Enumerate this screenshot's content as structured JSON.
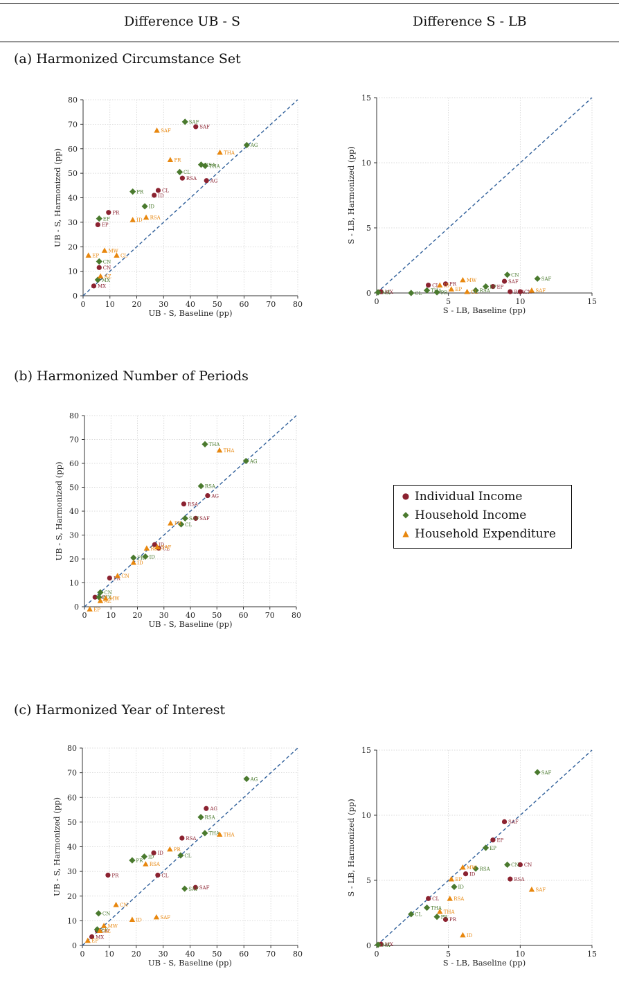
{
  "header": {
    "col1": "Difference UB - S",
    "col2": "Difference S - LB"
  },
  "sections": {
    "a": "(a) Harmonized Circumstance Set",
    "b": "(b) Harmonized Number of Periods",
    "c": "(c) Harmonized Year of Interest"
  },
  "legend": {
    "individual": "Individual Income",
    "household_income": "Household Income",
    "household_expenditure": "Household Expenditure"
  },
  "colors": {
    "individual": "#8b2230",
    "household_income": "#4a7a2e",
    "household_expenditure": "#e8870e",
    "diagonal": "#2f5f9a"
  },
  "chart_data": [
    {
      "id": "a1",
      "type": "scatter",
      "xlabel": "UB - S, Baseline (pp)",
      "ylabel": "UB - S, Harmonized (pp)",
      "xlim": [
        0,
        80
      ],
      "ylim": [
        0,
        80
      ],
      "xticks": [
        "0",
        "10",
        "20",
        "30",
        "40",
        "50",
        "60",
        "70",
        "80"
      ],
      "yticks": [
        "0",
        "10",
        "20",
        "30",
        "40",
        "50",
        "60",
        "70",
        "80"
      ],
      "grid": true,
      "diagonal": true,
      "series": [
        {
          "name": "Individual Income",
          "points": [
            {
              "x": 9.5,
              "y": 34,
              "label": "PR"
            },
            {
              "x": 5.5,
              "y": 29,
              "label": "EP"
            },
            {
              "x": 6,
              "y": 11.5,
              "label": "CN"
            },
            {
              "x": 4,
              "y": 4,
              "label": "MX"
            },
            {
              "x": 28,
              "y": 43,
              "label": "CL"
            },
            {
              "x": 26.5,
              "y": 41,
              "label": "ID"
            },
            {
              "x": 37,
              "y": 48,
              "label": "RSA"
            },
            {
              "x": 46,
              "y": 47,
              "label": "AG"
            },
            {
              "x": 42,
              "y": 69,
              "label": "SAF"
            }
          ]
        },
        {
          "name": "Household Income",
          "points": [
            {
              "x": 6,
              "y": 31.5,
              "label": "EP"
            },
            {
              "x": 18.5,
              "y": 42.5,
              "label": "PR"
            },
            {
              "x": 23,
              "y": 36.5,
              "label": "ID"
            },
            {
              "x": 36,
              "y": 50.5,
              "label": "CL"
            },
            {
              "x": 44,
              "y": 53.5,
              "label": "RSA"
            },
            {
              "x": 45.5,
              "y": 53,
              "label": "THA"
            },
            {
              "x": 61,
              "y": 61.5,
              "label": "AG"
            },
            {
              "x": 38,
              "y": 71,
              "label": "SAF"
            },
            {
              "x": 6,
              "y": 14,
              "label": "CN"
            },
            {
              "x": 5.5,
              "y": 6.5,
              "label": "MX"
            }
          ]
        },
        {
          "name": "Household Expenditure",
          "points": [
            {
              "x": 27.5,
              "y": 67.5,
              "label": "SAF"
            },
            {
              "x": 32.5,
              "y": 55.5,
              "label": "PR"
            },
            {
              "x": 51,
              "y": 58.5,
              "label": "THA"
            },
            {
              "x": 23.5,
              "y": 32,
              "label": "RSA"
            },
            {
              "x": 18.5,
              "y": 31,
              "label": "ID"
            },
            {
              "x": 2,
              "y": 16.5,
              "label": "EP"
            },
            {
              "x": 8,
              "y": 18.5,
              "label": "MW"
            },
            {
              "x": 12.5,
              "y": 16.5,
              "label": "CL"
            },
            {
              "x": 6.5,
              "y": 8,
              "label": "AZ"
            }
          ]
        }
      ]
    },
    {
      "id": "a2",
      "type": "scatter",
      "xlabel": "S - LB, Baseline (pp)",
      "ylabel": "S - LB, Harmonized (pp)",
      "xlim": [
        0,
        15
      ],
      "ylim": [
        0,
        15
      ],
      "xticks": [
        "0",
        "5",
        "10",
        "15"
      ],
      "yticks": [
        "0",
        "5",
        "10",
        "15"
      ],
      "grid": true,
      "diagonal": true,
      "series": [
        {
          "name": "Individual Income",
          "points": [
            {
              "x": 0.3,
              "y": 0.1,
              "label": "MX"
            },
            {
              "x": 3.6,
              "y": 0.6,
              "label": "CL"
            },
            {
              "x": 4.8,
              "y": 0.7,
              "label": "PR"
            },
            {
              "x": 8.1,
              "y": 0.5,
              "label": "EP"
            },
            {
              "x": 8.9,
              "y": 0.9,
              "label": "SAF"
            },
            {
              "x": 9.3,
              "y": 0.1,
              "label": "RSA"
            },
            {
              "x": 10,
              "y": 0.1,
              "label": "CN"
            }
          ]
        },
        {
          "name": "Household Income",
          "points": [
            {
              "x": 0.1,
              "y": 0.05,
              "label": "MX"
            },
            {
              "x": 2.4,
              "y": 0.0,
              "label": "CL"
            },
            {
              "x": 3.5,
              "y": 0.2,
              "label": "THA"
            },
            {
              "x": 4.2,
              "y": 0.05,
              "label": "PR"
            },
            {
              "x": 6.9,
              "y": 0.2,
              "label": "RSA"
            },
            {
              "x": 7.6,
              "y": 0.5,
              "label": "EP"
            },
            {
              "x": 9.1,
              "y": 1.4,
              "label": "CN"
            },
            {
              "x": 11.2,
              "y": 1.1,
              "label": "SAF"
            }
          ]
        },
        {
          "name": "Household Expenditure",
          "points": [
            {
              "x": 4.4,
              "y": 0.6,
              "label": "ID"
            },
            {
              "x": 5.2,
              "y": 0.3,
              "label": "EP"
            },
            {
              "x": 6.0,
              "y": 1.0,
              "label": "MW"
            },
            {
              "x": 6.3,
              "y": 0.1,
              "label": "CL"
            },
            {
              "x": 10.8,
              "y": 0.2,
              "label": "SAF"
            }
          ]
        }
      ]
    },
    {
      "id": "b1",
      "type": "scatter",
      "xlabel": "UB - S, Baseline (pp)",
      "ylabel": "UB - S, Harmonized (pp)",
      "xlim": [
        0,
        80
      ],
      "ylim": [
        0,
        80
      ],
      "xticks": [
        "0",
        "10",
        "20",
        "30",
        "40",
        "50",
        "60",
        "70",
        "80"
      ],
      "yticks": [
        "0",
        "10",
        "20",
        "30",
        "40",
        "50",
        "60",
        "70",
        "80"
      ],
      "grid": true,
      "diagonal": true,
      "series": [
        {
          "name": "Individual Income",
          "points": [
            {
              "x": 46.5,
              "y": 46.5,
              "label": "AG"
            },
            {
              "x": 37.5,
              "y": 43,
              "label": "RSA"
            },
            {
              "x": 26.5,
              "y": 26,
              "label": "ID"
            },
            {
              "x": 9.5,
              "y": 12,
              "label": "PR"
            },
            {
              "x": 4,
              "y": 4,
              "label": "MX"
            },
            {
              "x": 42,
              "y": 37,
              "label": "SAF"
            },
            {
              "x": 28,
              "y": 24.5,
              "label": "CL"
            }
          ]
        },
        {
          "name": "Household Income",
          "points": [
            {
              "x": 45.5,
              "y": 68,
              "label": "THA"
            },
            {
              "x": 61,
              "y": 61,
              "label": "AG"
            },
            {
              "x": 44,
              "y": 50.5,
              "label": "RSA"
            },
            {
              "x": 38,
              "y": 37,
              "label": "SAF"
            },
            {
              "x": 36.5,
              "y": 34.5,
              "label": "CL"
            },
            {
              "x": 23,
              "y": 21,
              "label": "ID"
            },
            {
              "x": 18.5,
              "y": 20.5,
              "label": "PR"
            },
            {
              "x": 6,
              "y": 6,
              "label": "CN"
            },
            {
              "x": 5.5,
              "y": 4,
              "label": "MX"
            }
          ]
        },
        {
          "name": "Household Expenditure",
          "points": [
            {
              "x": 51,
              "y": 65.5,
              "label": "THA"
            },
            {
              "x": 32.5,
              "y": 35,
              "label": "PR"
            },
            {
              "x": 23.5,
              "y": 24.5,
              "label": "RSA"
            },
            {
              "x": 27.5,
              "y": 25,
              "label": "SAF"
            },
            {
              "x": 18.5,
              "y": 18.5,
              "label": "ID"
            },
            {
              "x": 12.5,
              "y": 13,
              "label": "CN"
            },
            {
              "x": 8,
              "y": 3.5,
              "label": "MW"
            },
            {
              "x": 6,
              "y": 2.5,
              "label": "AZ"
            },
            {
              "x": 2,
              "y": -1,
              "label": "EP"
            }
          ]
        }
      ]
    },
    {
      "id": "c1",
      "type": "scatter",
      "xlabel": "UB - S, Baseline (pp)",
      "ylabel": "UB - S, Harmonized (pp)",
      "xlim": [
        0,
        80
      ],
      "ylim": [
        0,
        80
      ],
      "xticks": [
        "0",
        "10",
        "20",
        "30",
        "40",
        "50",
        "60",
        "70",
        "80"
      ],
      "yticks": [
        "0",
        "10",
        "20",
        "30",
        "40",
        "50",
        "60",
        "70",
        "80"
      ],
      "grid": true,
      "diagonal": true,
      "series": [
        {
          "name": "Individual Income",
          "points": [
            {
              "x": 46,
              "y": 55.5,
              "label": "AG"
            },
            {
              "x": 37,
              "y": 43.5,
              "label": "RSA"
            },
            {
              "x": 26.5,
              "y": 37.5,
              "label": "ID"
            },
            {
              "x": 28,
              "y": 28.5,
              "label": "CL"
            },
            {
              "x": 9.5,
              "y": 28.5,
              "label": "PR"
            },
            {
              "x": 42,
              "y": 23.5,
              "label": "SAF"
            },
            {
              "x": 5.5,
              "y": 6,
              "label": "CN"
            },
            {
              "x": 3.5,
              "y": 3.5,
              "label": "MX"
            }
          ]
        },
        {
          "name": "Household Income",
          "points": [
            {
              "x": 61,
              "y": 67.5,
              "label": "AG"
            },
            {
              "x": 44,
              "y": 52,
              "label": "RSA"
            },
            {
              "x": 45.5,
              "y": 45.5,
              "label": "THA"
            },
            {
              "x": 36.5,
              "y": 36.5,
              "label": "CL"
            },
            {
              "x": 23,
              "y": 36,
              "label": "ID"
            },
            {
              "x": 18.5,
              "y": 34.5,
              "label": "PR"
            },
            {
              "x": 38,
              "y": 23,
              "label": "SAF"
            },
            {
              "x": 6,
              "y": 13,
              "label": "CN"
            },
            {
              "x": 5.5,
              "y": 6.5,
              "label": "EP"
            }
          ]
        },
        {
          "name": "Household Expenditure",
          "points": [
            {
              "x": 51,
              "y": 45,
              "label": "THA"
            },
            {
              "x": 32.5,
              "y": 39,
              "label": "PR"
            },
            {
              "x": 23.5,
              "y": 33,
              "label": "RSA"
            },
            {
              "x": 27.5,
              "y": 11.5,
              "label": "SAF"
            },
            {
              "x": 18.5,
              "y": 10.5,
              "label": "ID"
            },
            {
              "x": 12.5,
              "y": 16.5,
              "label": "CN"
            },
            {
              "x": 8,
              "y": 8,
              "label": "MW"
            },
            {
              "x": 6.5,
              "y": 6,
              "label": "AZ"
            },
            {
              "x": 2,
              "y": 2,
              "label": "EP"
            }
          ]
        }
      ]
    },
    {
      "id": "c2",
      "type": "scatter",
      "xlabel": "S - LB, Baseline (pp)",
      "ylabel": "S - LB, Harmonized (pp)",
      "xlim": [
        0,
        15
      ],
      "ylim": [
        0,
        15
      ],
      "xticks": [
        "0",
        "5",
        "10",
        "15"
      ],
      "yticks": [
        "0",
        "5",
        "10",
        "15"
      ],
      "grid": true,
      "diagonal": true,
      "series": [
        {
          "name": "Individual Income",
          "points": [
            {
              "x": 8.9,
              "y": 9.5,
              "label": "SAF"
            },
            {
              "x": 8.1,
              "y": 8.1,
              "label": "EP"
            },
            {
              "x": 10,
              "y": 6.2,
              "label": "CN"
            },
            {
              "x": 6.2,
              "y": 5.5,
              "label": "ID"
            },
            {
              "x": 9.3,
              "y": 5.1,
              "label": "RSA"
            },
            {
              "x": 3.6,
              "y": 3.6,
              "label": "CL"
            },
            {
              "x": 4.8,
              "y": 2.0,
              "label": "PR"
            },
            {
              "x": 0.3,
              "y": 0.1,
              "label": "MX"
            }
          ]
        },
        {
          "name": "Household Income",
          "points": [
            {
              "x": 11.2,
              "y": 13.3,
              "label": "SAF"
            },
            {
              "x": 7.6,
              "y": 7.5,
              "label": "EP"
            },
            {
              "x": 9.1,
              "y": 6.2,
              "label": "CN"
            },
            {
              "x": 6.9,
              "y": 5.9,
              "label": "RSA"
            },
            {
              "x": 5.4,
              "y": 4.5,
              "label": "ID"
            },
            {
              "x": 3.5,
              "y": 2.9,
              "label": "THA"
            },
            {
              "x": 2.4,
              "y": 2.4,
              "label": "CL"
            },
            {
              "x": 4.2,
              "y": 2.2,
              "label": "PR"
            },
            {
              "x": 0.1,
              "y": 0.05,
              "label": "MX"
            }
          ]
        },
        {
          "name": "Household Expenditure",
          "points": [
            {
              "x": 10.8,
              "y": 4.3,
              "label": "SAF"
            },
            {
              "x": 6.0,
              "y": 6.0,
              "label": "MW"
            },
            {
              "x": 5.2,
              "y": 5.1,
              "label": "EP"
            },
            {
              "x": 5.1,
              "y": 3.6,
              "label": "RSA"
            },
            {
              "x": 4.4,
              "y": 2.6,
              "label": "THA"
            },
            {
              "x": 6.0,
              "y": 0.8,
              "label": "ID"
            }
          ]
        }
      ]
    }
  ]
}
